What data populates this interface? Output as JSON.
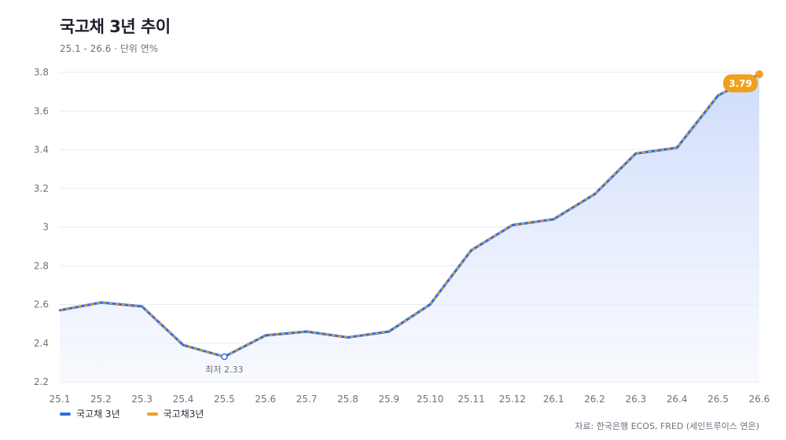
{
  "header": {
    "title": "국고채 3년 추이",
    "subtitle": "25.1 - 26.6 · 단위 연%"
  },
  "legend": [
    {
      "label": "국고채 3년",
      "color": "#2f6fe0"
    },
    {
      "label": "국고채3년",
      "color": "#f0a020"
    }
  ],
  "source": "자료: 한국은행 ECOS, FRED (세인트루이스 연은)",
  "annotations": {
    "min_label": "최저 2.33",
    "last_value_label": "3.79"
  },
  "colors": {
    "series_a": "#2f6fe0",
    "series_b": "#f0a020",
    "area_top": "#c9d7fa",
    "area_bottom": "#f3f6fe",
    "grid": "#e8ebf0"
  },
  "chart_data": {
    "type": "line",
    "title": "국고채 3년 추이",
    "xlabel": "",
    "ylabel": "",
    "categories": [
      "25.1",
      "25.2",
      "25.3",
      "25.4",
      "25.5",
      "25.6",
      "25.7",
      "25.8",
      "25.9",
      "25.10",
      "25.11",
      "25.12",
      "26.1",
      "26.2",
      "26.3",
      "26.4",
      "26.5",
      "26.6"
    ],
    "series": [
      {
        "name": "국고채 3년",
        "values": [
          2.57,
          2.61,
          2.59,
          2.39,
          2.33,
          2.44,
          2.46,
          2.43,
          2.46,
          2.6,
          2.88,
          3.01,
          3.04,
          3.17,
          3.38,
          3.41,
          3.68,
          3.79
        ]
      },
      {
        "name": "국고채3년",
        "values": [
          2.57,
          2.61,
          2.59,
          2.39,
          2.33,
          2.44,
          2.46,
          2.43,
          2.46,
          2.6,
          2.88,
          3.01,
          3.04,
          3.17,
          3.38,
          3.41,
          3.68,
          3.79
        ]
      }
    ],
    "y_ticks": [
      "2.2",
      "2.4",
      "2.6",
      "2.8",
      "3",
      "3.2",
      "3.4",
      "3.6",
      "3.8"
    ],
    "ylim": [
      2.2,
      3.8
    ],
    "grid": true,
    "legend_position": "bottom-left"
  }
}
